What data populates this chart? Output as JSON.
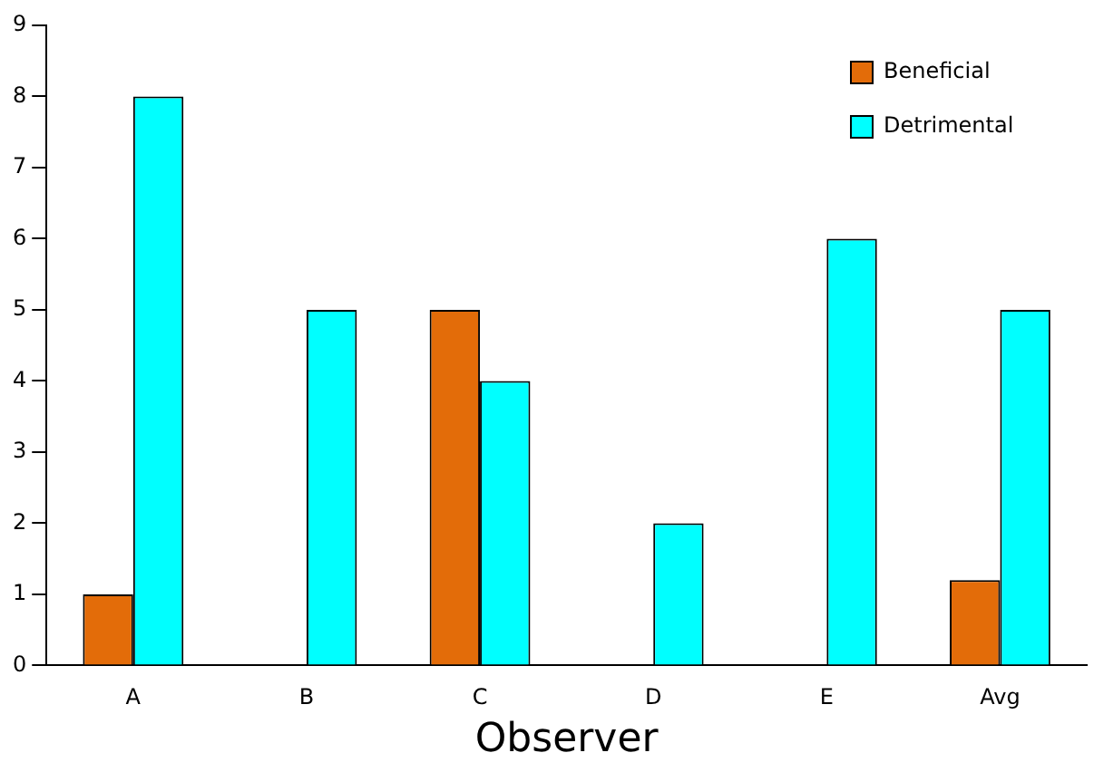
{
  "chart_data": {
    "type": "bar",
    "xlabel": "Observer",
    "categories": [
      "A",
      "B",
      "C",
      "D",
      "E",
      "Avg"
    ],
    "series": [
      {
        "name": "Beneficial",
        "color": "#e36c09",
        "values": [
          1,
          0,
          5,
          0,
          0,
          1.2
        ]
      },
      {
        "name": "Detrimental",
        "color": "#00ffff",
        "values": [
          8,
          5,
          4,
          2,
          6,
          5
        ]
      }
    ],
    "ylim": [
      0,
      9
    ],
    "yticks": [
      0,
      1,
      2,
      3,
      4,
      5,
      6,
      7,
      8,
      9
    ],
    "grid": false,
    "legend": "top right"
  }
}
